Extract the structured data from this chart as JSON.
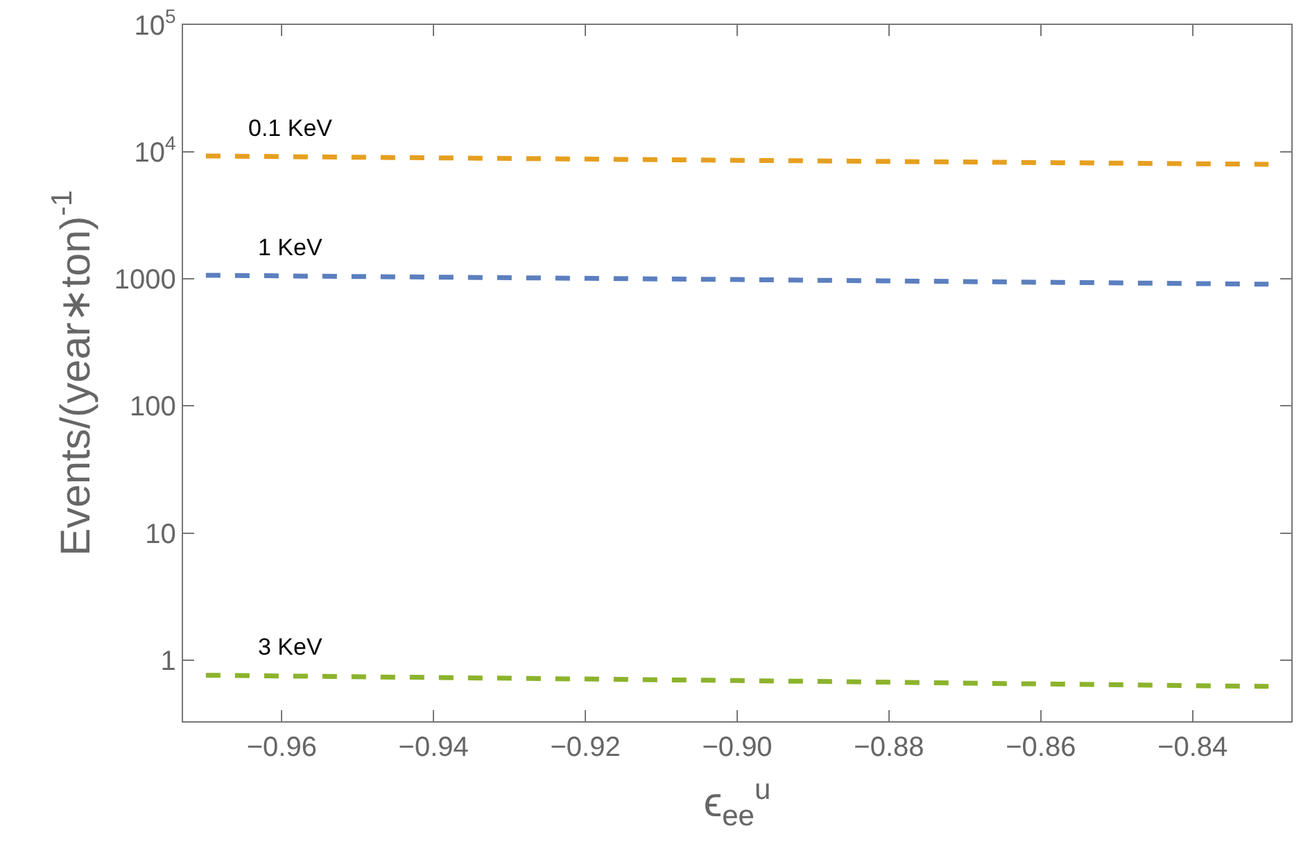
{
  "chart_data": {
    "type": "line",
    "xlabel": "ϵ$_{ee}$$^{u}$",
    "ylabel": "Events/(year∗ton)$^{-1}$",
    "x": [
      -0.97,
      -0.9,
      -0.83
    ],
    "series": [
      {
        "name": "0.1 KeV",
        "color": "#e69f1f",
        "values": [
          9300,
          8600,
          8000
        ]
      },
      {
        "name": "1 KeV",
        "color": "#5b7fbf",
        "values": [
          1070,
          990,
          910
        ]
      },
      {
        "name": "3 KeV",
        "color": "#8cb32c",
        "values": [
          0.76,
          0.69,
          0.62
        ]
      }
    ],
    "log": true,
    "xlim": [
      -0.973,
      -0.827
    ],
    "xticks": [
      {
        "value": -0.96,
        "label": "−0.96"
      },
      {
        "value": -0.94,
        "label": "−0.94"
      },
      {
        "value": -0.92,
        "label": "−0.92"
      },
      {
        "value": -0.9,
        "label": "−0.90"
      },
      {
        "value": -0.88,
        "label": "−0.88"
      },
      {
        "value": -0.86,
        "label": "−0.86"
      },
      {
        "value": -0.84,
        "label": "−0.84"
      }
    ],
    "ylim": [
      0.33,
      100000
    ],
    "yticks": [
      1,
      10,
      100,
      1000,
      {
        "value": 10000,
        "label": "10$^{4}$"
      },
      {
        "value": 100000,
        "label": "10$^{5}$"
      }
    ],
    "line_style": "dashed",
    "marker": "none",
    "grid": false,
    "legend": false
  }
}
